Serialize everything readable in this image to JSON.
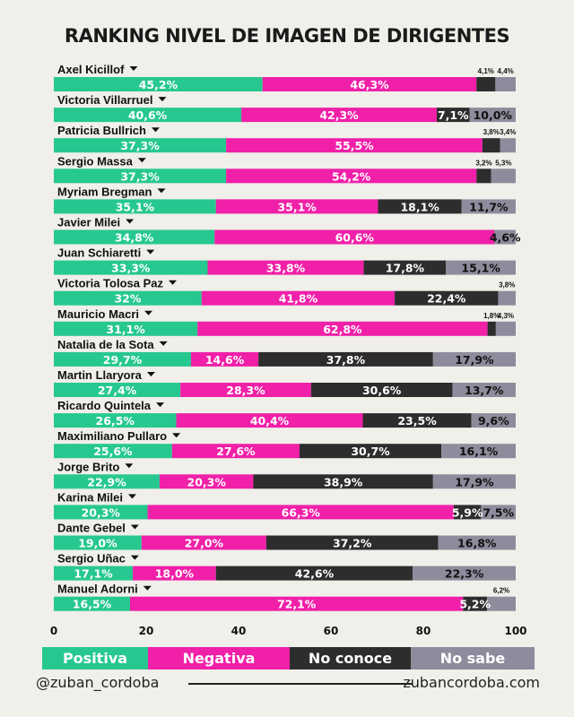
{
  "chart_data": {
    "type": "bar",
    "stacked": true,
    "orientation": "horizontal",
    "title": "RANKING NIVEL DE IMAGEN DE DIRIGENTES",
    "xlim": [
      0,
      100
    ],
    "x_ticks": [
      "0",
      "20",
      "40",
      "60",
      "80",
      "100"
    ],
    "grid": false,
    "legend_position": "bottom",
    "categories": [
      "Axel Kicillof",
      "Victoria Villarruel",
      "Patricia Bullrich",
      "Sergio Massa",
      "Myriam Bregman",
      "Javier Milei",
      "Juan Schiaretti",
      "Victoria Tolosa Paz",
      "Mauricio Macri",
      "Natalia de la Sota",
      "Martin Llaryora",
      "Ricardo Quintela",
      "Maximiliano Pullaro",
      "Jorge Brito",
      "Karina Milei",
      "Dante Gebel",
      "Sergio Uñac",
      "Manuel Adorni"
    ],
    "series": [
      {
        "name": "Positiva",
        "color": "#27c88f",
        "values": [
          45.2,
          40.6,
          37.3,
          37.3,
          35.1,
          34.8,
          33.3,
          32,
          31.1,
          29.7,
          27.4,
          26.5,
          25.6,
          22.9,
          20.3,
          19.0,
          17.1,
          16.5
        ],
        "labels": [
          "45,2%",
          "40,6%",
          "37,3%",
          "37,3%",
          "35,1%",
          "34,8%",
          "33,3%",
          "32%",
          "31,1%",
          "29,7%",
          "27,4%",
          "26,5%",
          "25,6%",
          "22,9%",
          "20,3%",
          "19,0%",
          "17,1%",
          "16,5%"
        ]
      },
      {
        "name": "Negativa",
        "color": "#f020a8",
        "values": [
          46.3,
          42.3,
          55.5,
          54.2,
          35.1,
          60.6,
          33.8,
          41.8,
          62.8,
          14.6,
          28.3,
          40.4,
          27.6,
          20.3,
          66.3,
          27.0,
          18.0,
          72.1
        ],
        "labels": [
          "46,3%",
          "42,3%",
          "55,5%",
          "54,2%",
          "35,1%",
          "60,6%",
          "33,8%",
          "41,8%",
          "62,8%",
          "14,6%",
          "28,3%",
          "40,4%",
          "27,6%",
          "20,3%",
          "66,3%",
          "27,0%",
          "18,0%",
          "72,1%"
        ]
      },
      {
        "name": "No conoce",
        "color": "#2d2d2d",
        "values": [
          4.1,
          7.1,
          3.8,
          3.2,
          18.1,
          0,
          17.8,
          22.4,
          1.8,
          37.8,
          30.6,
          23.5,
          30.7,
          38.9,
          5.9,
          37.2,
          42.6,
          5.2
        ],
        "labels": [
          "4,1%",
          "7,1%",
          "3,8%",
          "3,2%",
          "18,1%",
          "",
          "17,8%",
          "22,4%",
          "1,8%",
          "37,8%",
          "30,6%",
          "23,5%",
          "30,7%",
          "38,9%",
          "5,9%",
          "37,2%",
          "42,6%",
          "5,2%"
        ]
      },
      {
        "name": "No sabe",
        "color": "#8c8c9c",
        "values": [
          4.4,
          10.0,
          3.4,
          5.3,
          11.7,
          4.6,
          15.1,
          3.8,
          4.3,
          17.9,
          13.7,
          9.6,
          16.1,
          17.9,
          7.5,
          16.8,
          22.3,
          6.2
        ],
        "labels": [
          "4,4%",
          "10,0%",
          "3,4%",
          "5,3%",
          "11,7%",
          "4,6%",
          "15,1%",
          "3,8%",
          "4,3%",
          "17,9%",
          "13,7%",
          "9,6%",
          "16,1%",
          "17,9%",
          "7,5%",
          "16,8%",
          "22,3%",
          "6,2%"
        ]
      }
    ]
  },
  "footer": {
    "handle": "@zuban_cordoba",
    "website": "zubancordoba.com"
  }
}
